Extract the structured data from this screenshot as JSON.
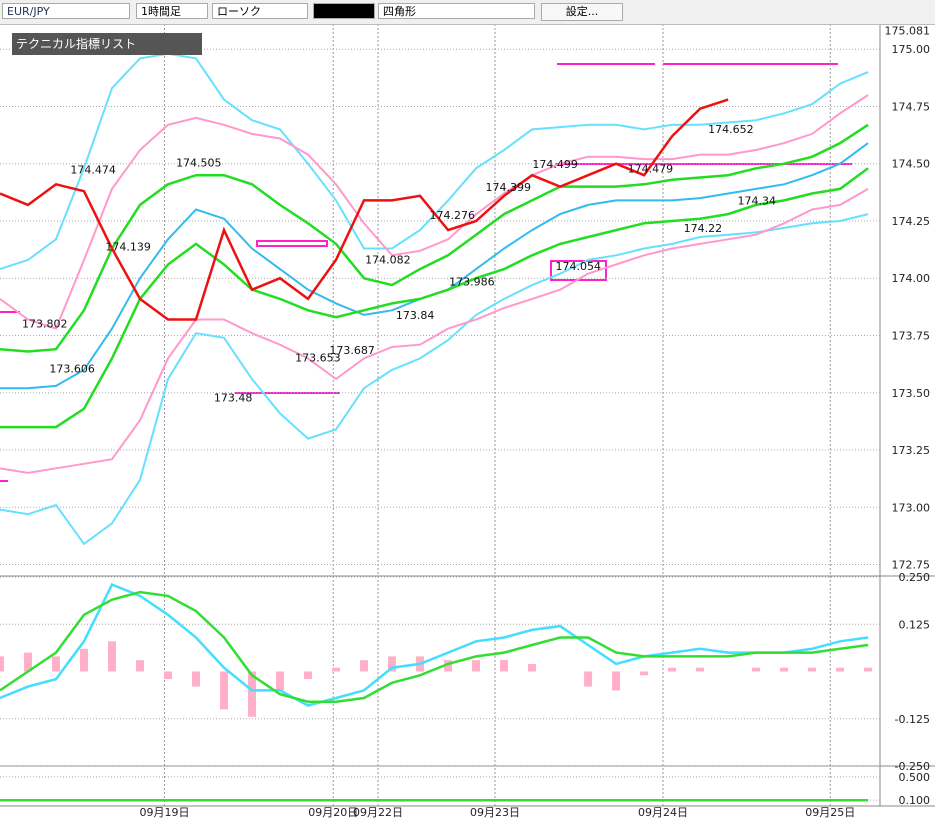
{
  "toolbar": {
    "symbol": "EUR/JPY",
    "timeframe": "1時間足",
    "chart_style": "ローソク",
    "drawing_tool": "四角形",
    "settings_button": "設定..."
  },
  "indicator_panel": {
    "title": "テクニカル指標リスト"
  },
  "chart_data": [
    {
      "type": "line",
      "grid": true,
      "last_price": 175.081,
      "x": [
        0,
        4,
        8,
        12,
        16,
        20,
        24,
        28,
        32,
        36,
        40,
        44,
        48,
        52,
        56,
        60,
        64,
        68,
        72,
        76,
        80,
        84,
        88,
        92,
        96,
        100,
        104,
        108,
        112,
        116,
        120,
        124
      ],
      "xlim": [
        0,
        125.7
      ],
      "xticks": [
        {
          "value": 23.5,
          "label": "09月19日"
        },
        {
          "value": 47.6,
          "label": "09月20日"
        },
        {
          "value": 54,
          "label": "09月22日"
        },
        {
          "value": 70.7,
          "label": "09月23日"
        },
        {
          "value": 94.7,
          "label": "09月24日"
        },
        {
          "value": 118.6,
          "label": "09月25日"
        }
      ],
      "ylim": [
        172.7,
        175.11
      ],
      "yticks": [
        {
          "value": 175,
          "label": "175.00"
        },
        174.75,
        {
          "value": 174.5,
          "label": "174.50"
        },
        174.25,
        {
          "value": 174,
          "label": "174.00"
        },
        173.75,
        {
          "value": 173.5,
          "label": "173.50"
        },
        173.25,
        {
          "value": 173,
          "label": "173.00"
        },
        172.75
      ],
      "series": [
        {
          "color": "#66e0ff",
          "values": [
            174.04,
            174.08,
            174.17,
            174.48,
            174.83,
            174.96,
            174.98,
            174.96,
            174.78,
            174.69,
            174.65,
            174.5,
            174.34,
            174.13,
            174.13,
            174.21,
            174.34,
            174.48,
            174.56,
            174.65,
            174.66,
            174.67,
            174.67,
            174.65,
            174.67,
            174.67,
            174.68,
            174.69,
            174.72,
            174.76,
            174.85,
            174.9
          ]
        },
        {
          "color": "#66e0ff",
          "values": [
            172.99,
            172.97,
            173.01,
            172.84,
            172.93,
            173.12,
            173.56,
            173.76,
            173.74,
            173.56,
            173.41,
            173.3,
            173.34,
            173.52,
            173.6,
            173.65,
            173.73,
            173.84,
            173.91,
            173.97,
            174.02,
            174.08,
            174.1,
            174.13,
            174.15,
            174.18,
            174.19,
            174.2,
            174.22,
            174.24,
            174.25,
            174.28
          ]
        },
        {
          "color": "#ff99cc",
          "values": [
            173.91,
            173.82,
            173.78,
            174.08,
            174.39,
            174.56,
            174.67,
            174.7,
            174.67,
            174.63,
            174.61,
            174.54,
            174.41,
            174.24,
            174.1,
            174.12,
            174.17,
            174.28,
            174.37,
            174.45,
            174.5,
            174.53,
            174.53,
            174.52,
            174.52,
            174.54,
            174.54,
            174.56,
            174.59,
            174.63,
            174.72,
            174.8
          ]
        },
        {
          "color": "#ff99cc",
          "values": [
            173.17,
            173.15,
            173.17,
            173.19,
            173.21,
            173.38,
            173.65,
            173.82,
            173.82,
            173.76,
            173.71,
            173.65,
            173.56,
            173.65,
            173.7,
            173.71,
            173.78,
            173.82,
            173.87,
            173.91,
            173.95,
            174.02,
            174.06,
            174.1,
            174.13,
            174.15,
            174.17,
            174.19,
            174.24,
            174.3,
            174.32,
            174.39
          ]
        },
        {
          "color": "#33bbee",
          "values": [
            173.52,
            173.52,
            173.53,
            173.6,
            173.78,
            174,
            174.17,
            174.3,
            174.26,
            174.13,
            174.04,
            173.95,
            173.89,
            173.84,
            173.86,
            173.91,
            173.95,
            174.04,
            174.13,
            174.21,
            174.28,
            174.32,
            174.34,
            174.34,
            174.34,
            174.35,
            174.37,
            174.39,
            174.41,
            174.45,
            174.5,
            174.59
          ]
        },
        {
          "color": "#22dd22",
          "values": [
            173.69,
            173.68,
            173.69,
            173.86,
            174.13,
            174.32,
            174.41,
            174.45,
            174.45,
            174.41,
            174.32,
            174.24,
            174.15,
            174,
            173.97,
            174.04,
            174.1,
            174.19,
            174.28,
            174.34,
            174.4,
            174.4,
            174.4,
            174.41,
            174.43,
            174.44,
            174.45,
            174.48,
            174.5,
            174.53,
            174.59,
            174.67
          ]
        },
        {
          "color": "#22dd22",
          "values": [
            173.35,
            173.35,
            173.35,
            173.43,
            173.65,
            173.91,
            174.06,
            174.15,
            174.06,
            173.95,
            173.91,
            173.86,
            173.83,
            173.86,
            173.89,
            173.91,
            173.95,
            174,
            174.04,
            174.1,
            174.15,
            174.18,
            174.21,
            174.24,
            174.25,
            174.26,
            174.28,
            174.32,
            174.34,
            174.37,
            174.39,
            174.48
          ]
        },
        {
          "color": "#ee1111",
          "values": [
            174.37,
            174.32,
            174.41,
            174.38,
            174.13,
            173.91,
            173.82,
            173.82,
            174.21,
            173.95,
            174,
            173.91,
            174.08,
            174.34,
            174.34,
            174.36,
            174.21,
            174.25,
            174.36,
            174.45,
            174.4,
            174.45,
            174.5,
            174.45,
            174.62,
            174.74,
            174.78,
            null,
            null,
            null,
            null,
            null
          ]
        }
      ],
      "annotations": [
        {
          "x": 6.4,
          "value": 173.802
        },
        {
          "x": 10.3,
          "value": 173.606
        },
        {
          "x": 13.3,
          "value": 174.474
        },
        {
          "x": 18.3,
          "value": 174.139
        },
        {
          "x": 28.4,
          "value": 174.505
        },
        {
          "x": 33.3,
          "value": 173.48
        },
        {
          "x": 45.4,
          "value": 173.653
        },
        {
          "x": 50.3,
          "value": 173.687
        },
        {
          "x": 55.4,
          "value": 174.082
        },
        {
          "x": 59.3,
          "value": 173.84
        },
        {
          "x": 67.4,
          "value": 173.986
        },
        {
          "x": 64.6,
          "value": 174.276
        },
        {
          "x": 72.6,
          "value": 174.399
        },
        {
          "x": 79.3,
          "value": 174.499
        },
        {
          "x": 82.6,
          "value": 174.054
        },
        {
          "x": 92.9,
          "value": 174.479
        },
        {
          "x": 104.4,
          "value": 174.652
        },
        {
          "x": 100.4,
          "value": 174.22
        },
        {
          "x": 108.1,
          "value": 174.34
        }
      ]
    },
    {
      "type": "line",
      "grid": true,
      "x": [
        0,
        4,
        8,
        12,
        16,
        20,
        24,
        28,
        32,
        36,
        40,
        44,
        48,
        52,
        56,
        60,
        64,
        68,
        72,
        76,
        80,
        84,
        88,
        92,
        96,
        100,
        104,
        108,
        112,
        116,
        120,
        124
      ],
      "xlim": [
        0,
        125.7
      ],
      "ylim": [
        -0.25,
        0.25
      ],
      "yticks": [
        {
          "value": 0.25,
          "label": "0.250"
        },
        0.125,
        -0.125,
        {
          "value": -0.25,
          "label": "-0.250"
        }
      ],
      "series": [
        {
          "type": "bar",
          "color": "#ffb0c8",
          "values": [
            0.04,
            0.05,
            0.04,
            0.06,
            0.08,
            0.03,
            -0.02,
            -0.04,
            -0.1,
            -0.12,
            -0.05,
            -0.02,
            0.01,
            0.03,
            0.04,
            0.04,
            0.03,
            0.03,
            0.03,
            0.02,
            0,
            -0.04,
            -0.05,
            -0.01,
            0.01,
            0.01,
            0,
            0.01,
            0.01,
            0.01,
            0.01,
            0.01
          ]
        },
        {
          "color": "#44ddff",
          "values": [
            -0.07,
            -0.04,
            -0.02,
            0.08,
            0.23,
            0.2,
            0.15,
            0.09,
            0.01,
            -0.05,
            -0.05,
            -0.09,
            -0.07,
            -0.05,
            0.01,
            0.02,
            0.05,
            0.08,
            0.09,
            0.11,
            0.12,
            0.07,
            0.02,
            0.04,
            0.05,
            0.06,
            0.05,
            0.05,
            0.05,
            0.06,
            0.08,
            0.09
          ]
        },
        {
          "color": "#33dd33",
          "values": [
            -0.05,
            0,
            0.05,
            0.15,
            0.19,
            0.21,
            0.2,
            0.16,
            0.09,
            -0.01,
            -0.06,
            -0.08,
            -0.08,
            -0.07,
            -0.03,
            -0.01,
            0.02,
            0.04,
            0.05,
            0.07,
            0.09,
            0.09,
            0.05,
            0.04,
            0.04,
            0.04,
            0.04,
            0.05,
            0.05,
            0.05,
            0.06,
            0.07
          ]
        }
      ]
    },
    {
      "type": "line",
      "grid": true,
      "x": [
        0,
        62,
        124
      ],
      "xlim": [
        0,
        125.7
      ],
      "ylim": [
        0,
        0.6
      ],
      "yticks": [
        {
          "value": 0.5,
          "label": "0.500"
        },
        {
          "value": 0.1,
          "label": "0.100"
        }
      ],
      "series": [
        {
          "color": "#33dd33",
          "values": [
            0.1,
            0.1,
            0.1
          ]
        }
      ]
    }
  ]
}
